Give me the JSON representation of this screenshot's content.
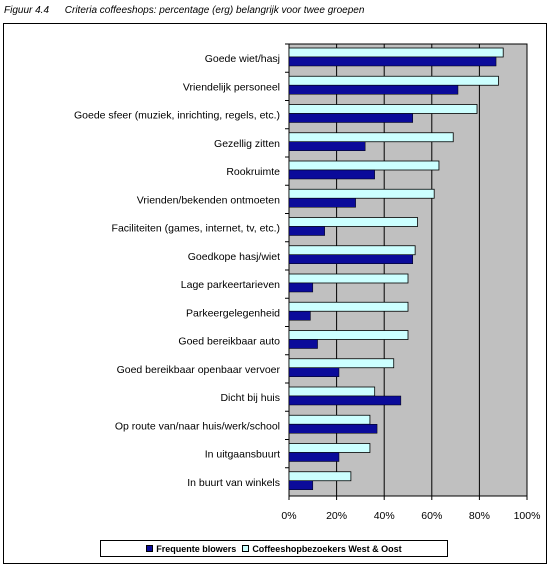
{
  "caption": {
    "label": "Figuur 4.4",
    "title": "Criteria coffeeshops: percentage (erg) belangrijk voor twee groepen"
  },
  "chart_data": {
    "type": "bar",
    "orientation": "horizontal",
    "categories": [
      "Goede wiet/hasj",
      "Vriendelijk personeel",
      "Goede sfeer (muziek, inrichting, regels, etc.)",
      "Gezellig zitten",
      "Rookruimte",
      "Vrienden/bekenden ontmoeten",
      "Faciliteiten (games, internet, tv, etc.)",
      "Goedkope hasj/wiet",
      "Lage parkeertarieven",
      "Parkeergelegenheid",
      "Goed bereikbaar auto",
      "Goed bereikbaar openbaar vervoer",
      "Dicht bij huis",
      "Op route van/naar huis/werk/school",
      "In uitgaansbuurt",
      "In buurt van winkels"
    ],
    "series": [
      {
        "name": "Coffeeshopbezoekers West & Oost",
        "color": "#ccffff",
        "values": [
          90,
          88,
          79,
          69,
          63,
          61,
          54,
          53,
          50,
          50,
          50,
          44,
          36,
          34,
          34,
          26
        ]
      },
      {
        "name": "Frequente blowers",
        "color": "#0b0b9a",
        "values": [
          87,
          71,
          52,
          32,
          36,
          28,
          15,
          52,
          10,
          9,
          12,
          21,
          47,
          37,
          21,
          10
        ]
      }
    ],
    "xlim": [
      0,
      100
    ],
    "ticks": [
      "0%",
      "20%",
      "40%",
      "60%",
      "80%",
      "100%"
    ],
    "plot_background": "#c0c0c0",
    "grid": true,
    "legend_position": "bottom"
  }
}
